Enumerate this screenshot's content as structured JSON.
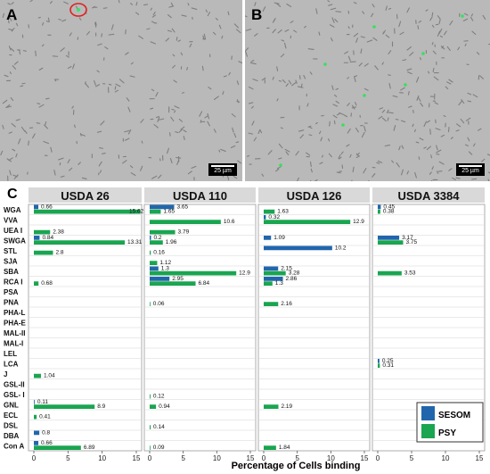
{
  "panels": {
    "a": {
      "label": "A",
      "scale_bar": "25 µm"
    },
    "b": {
      "label": "B",
      "scale_bar": "25 µm"
    },
    "c": {
      "label": "C"
    }
  },
  "chart_data": {
    "type": "bar",
    "orientation": "horizontal",
    "xlabel": "Percentage of Cells binding",
    "xlim": [
      0,
      15
    ],
    "xticks": [
      0,
      5,
      10,
      15
    ],
    "grid": true,
    "legend_position": "bottom-right",
    "categories": [
      "WGA",
      "VVA",
      "UEA I",
      "SWGA",
      "STL",
      "SJA",
      "SBA",
      "RCA I",
      "PSA",
      "PNA",
      "PHA-L",
      "PHA-E",
      "MAL-II",
      "MAL-I",
      "LEL",
      "LCA",
      "J",
      "GSL-II",
      "GSL- I",
      "GNL",
      "ECL",
      "DSL",
      "DBA",
      "Con A"
    ],
    "series_colors": {
      "SESOM": "#2166ac",
      "PSY": "#1aa551"
    },
    "legend": [
      "SESOM",
      "PSY"
    ],
    "facets": [
      {
        "title": "USDA 26",
        "SESOM": {
          "WGA": 0.66,
          "SWGA": 0.84,
          "GNL": 0.11,
          "DBA": 0.8,
          "Con A": 0.66
        },
        "PSY": {
          "WGA": 15.62,
          "UEA I": 2.38,
          "SWGA": 13.31,
          "STL": 2.8,
          "RCA I": 0.68,
          "J": 1.04,
          "GNL": 8.9,
          "ECL": 0.41,
          "Con A": 6.89
        }
      },
      {
        "title": "USDA 110",
        "SESOM": {
          "WGA": 3.65,
          "SWGA": 0.2,
          "SBA": 1.3,
          "RCA I": 2.95
        },
        "PSY": {
          "WGA": 1.65,
          "VVA": 10.6,
          "UEA I": 3.79,
          "SWGA": 1.96,
          "STL": 0.16,
          "SJA": 1.12,
          "SBA": 12.9,
          "RCA I": 6.84,
          "PNA": 0.06,
          "GSL- I": 0.12,
          "GNL": 0.94,
          "DSL": 0.14,
          "Con A": 0.09
        }
      },
      {
        "title": "USDA 126",
        "SESOM": {
          "VVA": 0.32,
          "SWGA": 1.09,
          "STL": 10.2,
          "SBA": 2.15,
          "RCA I": 2.86
        },
        "PSY": {
          "WGA": 1.63,
          "VVA": 12.9,
          "SBA": 3.28,
          "RCA I": 1.3,
          "PNA": 2.16,
          "GNL": 2.19,
          "Con A": 1.84
        }
      },
      {
        "title": "USDA 3384",
        "SESOM": {
          "WGA": 0.45,
          "SWGA": 3.17,
          "LCA": 0.25
        },
        "PSY": {
          "WGA": 0.38,
          "SWGA": 3.75,
          "SBA": 3.53,
          "LCA": 0.31
        }
      }
    ]
  }
}
